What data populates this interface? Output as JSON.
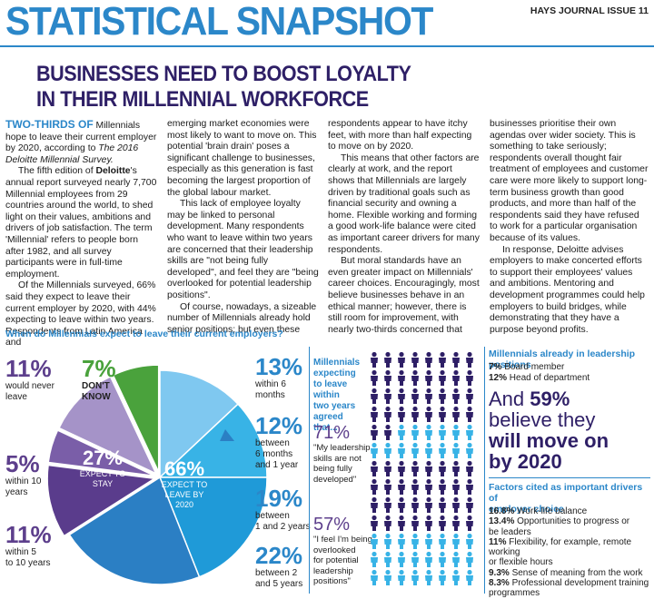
{
  "header": {
    "title": "STATISTICAL SNAPSHOT",
    "issue": "HAYS JOURNAL ISSUE 11"
  },
  "headline": {
    "line1": "BUSINESSES NEED TO BOOST LOYALTY",
    "line2": "IN THEIR MILLENNIAL WORKFORCE"
  },
  "article": {
    "col1": {
      "lead": "TWO-THIRDS OF",
      "p1_rest": " Millennials hope to leave their current employer by 2020, according to ",
      "p1_italic": "The 2016 Deloitte Millennial Survey.",
      "p2_a": "The fifth edition of ",
      "p2_bold": "Deloitte",
      "p2_b": "'s annual report surveyed nearly 7,700 Millennial employees from 29 countries around the world, to shed light on their values, ambitions and drivers of job satisfaction. The term 'Millennial' refers to people born after 1982, and all survey participants were in full-time employment.",
      "p3": "Of the Millennials surveyed, 66% said they expect to leave their current employer by 2020, with 44% expecting to leave within two years. Respondents from Latin America and"
    },
    "col2": {
      "p1": "emerging market economies were most likely to want to move on. This potential 'brain drain' poses a significant challenge to businesses, especially as this generation is fast becoming the largest proportion of the global labour market.",
      "p2": "This lack of employee loyalty may be linked to personal development. Many respondents who want to leave within two years are concerned that their leadership skills are \"not being fully developed\", and feel they are \"being overlooked for potential leadership positions\".",
      "p3": "Of course, nowadays, a sizeable number of Millennials already hold senior positions; but even these"
    },
    "col3": {
      "p1": "respondents appear to have itchy feet, with more than half expecting to move on by 2020.",
      "p2": "This means that other factors are clearly at work, and the report shows that Millennials are largely driven by traditional goals such as financial security and owning a home. Flexible working and forming a good work-life balance were cited as important career drivers for many respondents.",
      "p3": "But moral standards have an even greater impact on Millennials' career choices. Encouragingly, most believe businesses behave in an ethical manner; however, there is still room for improvement, with nearly two-thirds concerned that"
    },
    "col4": {
      "p1": "businesses prioritise their own agendas over wider society. This is something to take seriously; respondents overall thought fair treatment of employees and customer care were more likely to support long-term business growth than good products, and more than half of the respondents said they have refused to work for a particular organisation because of its values.",
      "p2": "In response, Deloitte advises employers to make concerted efforts to support their employees' values and ambitions. Mentoring and development programmes could help employers to build bridges, while demonstrating that they have a purpose beyond profits."
    }
  },
  "chart_data": {
    "type": "pie",
    "title": "When do Millennials expect to leave their current employers?",
    "slices": [
      {
        "label": "within 6 months",
        "value": 13,
        "color": "#7fc8f0"
      },
      {
        "label": "between 6 months and 1 year",
        "value": 12,
        "color": "#38b3e6"
      },
      {
        "label": "between 1 and 2 years",
        "value": 19,
        "color": "#1f9ad8"
      },
      {
        "label": "between 2 and 5 years",
        "value": 22,
        "color": "#2b7fc4"
      },
      {
        "label": "within 5 to 10 years",
        "value": 11,
        "color": "#5a3c8c"
      },
      {
        "label": "within 10 years",
        "value": 5,
        "color": "#7a5ea8"
      },
      {
        "label": "would never leave",
        "value": 11,
        "color": "#a593c8"
      },
      {
        "label": "DON'T KNOW",
        "value": 7,
        "color": "#4aa23c"
      }
    ],
    "groups": [
      {
        "value": "66%",
        "label1": "EXPECT TO",
        "label2": "LEAVE BY",
        "label3": "2020"
      },
      {
        "value": "27%",
        "label1": "EXPECT TO",
        "label2": "STAY"
      }
    ]
  },
  "pie_labels": {
    "never": {
      "pct": "11%",
      "l1": "would never",
      "l2": "leave"
    },
    "dontknow": {
      "pct": "7%",
      "l1": "DON'T",
      "l2": "KNOW"
    },
    "ten": {
      "pct": "5%",
      "l1": "within 10",
      "l2": "years"
    },
    "fiveten": {
      "pct": "11%",
      "l1": "within 5",
      "l2": "to 10 years"
    },
    "six": {
      "pct": "13%",
      "l1": "within 6",
      "l2": "months"
    },
    "sixone": {
      "pct": "12%",
      "l1": "between",
      "l2": "6 months",
      "l3": "and 1 year"
    },
    "onetwo": {
      "pct": "19%",
      "l1": "between",
      "l2": "1 and 2 years"
    },
    "twofive": {
      "pct": "22%",
      "l1": "between 2",
      "l2": "and 5 years"
    }
  },
  "people_panel": {
    "heading_l1": "Millennials",
    "heading_l2": "expecting",
    "heading_l3": "to leave within",
    "heading_l4": "two years",
    "heading_l5": "agreed that...",
    "q1_pct": "71%",
    "q1_l1": "\"My leadership",
    "q1_l2": "skills are not",
    "q1_l3": "being fully",
    "q1_l4": "developed\"",
    "q2_pct": "57%",
    "q2_l1": "\"I feel I'm being",
    "q2_l2": "overlooked",
    "q2_l3": "for potential",
    "q2_l4": "leadership",
    "q2_l5": "positions\""
  },
  "leadership": {
    "heading": "Millennials already in leadership positions",
    "line1_pct": "7%",
    "line1_text": " Board member",
    "line2_pct": "12%",
    "line2_text": " Head of department",
    "claim_a": "And ",
    "claim_pct": "59%",
    "claim_b": "believe they",
    "claim_c": "will move on",
    "claim_d": "by 2020"
  },
  "factors": {
    "heading_l1": "Factors cited as important drivers of",
    "heading_l2": "employer choice",
    "items": [
      {
        "pct": "16.8%",
        "text": " Work-life balance"
      },
      {
        "pct": "13.4%",
        "text": " Opportunities to progress or"
      },
      {
        "pct": "",
        "text": "be leaders"
      },
      {
        "pct": "11%",
        "text": " Flexibility, for example, remote working"
      },
      {
        "pct": "",
        "text": "or flexible hours"
      },
      {
        "pct": "9.3%",
        "text": " Sense of meaning from the work"
      },
      {
        "pct": "8.3%",
        "text": " Professional development training"
      },
      {
        "pct": "",
        "text": "programmes"
      }
    ]
  },
  "colors": {
    "accent_blue": "#2b87c9",
    "deep_purple": "#2e1f66",
    "purple": "#5d3f8c",
    "figure_light": "#38b3e6",
    "figure_dark": "#2e1f66"
  }
}
